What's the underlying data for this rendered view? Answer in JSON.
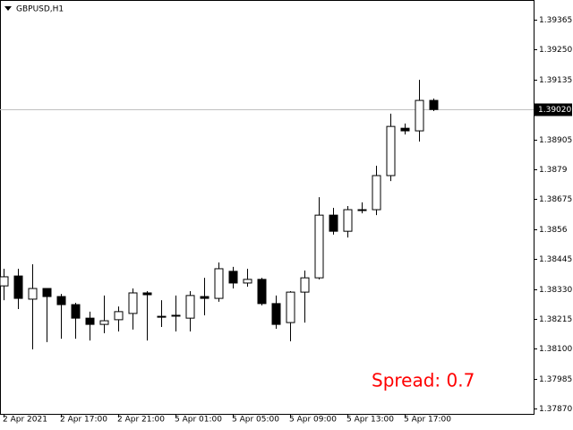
{
  "chart_data": {
    "type": "candlestick",
    "title": "GBPUSD,H1",
    "categories": [
      "2 Apr 2021",
      null,
      null,
      null,
      "2 Apr 17:00",
      null,
      null,
      null,
      "2 Apr 21:00",
      null,
      null,
      null,
      "5 Apr 01:00",
      null,
      null,
      null,
      "5 Apr 05:00",
      null,
      null,
      null,
      "5 Apr 09:00",
      null,
      null,
      null,
      "5 Apr 13:00",
      null,
      null,
      null,
      "5 Apr 17:00",
      null,
      null
    ],
    "open": [
      1.38342,
      1.3838,
      1.38291,
      1.38332,
      1.38301,
      1.3827,
      1.38218,
      1.38194,
      1.38212,
      1.38236,
      1.38315,
      1.38225,
      1.38229,
      1.38218,
      1.38301,
      1.38294,
      1.38398,
      1.38353,
      1.38367,
      1.38274,
      1.38201,
      1.38318,
      1.38373,
      1.38614,
      1.38552,
      1.38635,
      1.38635,
      1.38766,
      1.38948,
      1.38938,
      1.39055
    ],
    "high": [
      1.38408,
      1.38408,
      1.38425,
      1.38332,
      1.38311,
      1.38277,
      1.38243,
      1.38305,
      1.38263,
      1.38332,
      1.38322,
      1.38287,
      1.38305,
      1.38322,
      1.38373,
      1.38432,
      1.38415,
      1.38408,
      1.38373,
      1.38305,
      1.38322,
      1.38401,
      1.38683,
      1.38642,
      1.38649,
      1.38663,
      1.38804,
      1.39004,
      1.38966,
      1.39134,
      1.39062
    ],
    "low": [
      1.38287,
      1.38253,
      1.38098,
      1.38126,
      1.38139,
      1.38139,
      1.38132,
      1.3816,
      1.38167,
      1.38174,
      1.38132,
      1.38184,
      1.38167,
      1.38167,
      1.38229,
      1.38281,
      1.38332,
      1.38339,
      1.38267,
      1.38177,
      1.38129,
      1.38201,
      1.38367,
      1.38539,
      1.38528,
      1.38621,
      1.38614,
      1.38745,
      1.38924,
      1.38897,
      1.39014
    ],
    "close": [
      1.38377,
      1.38294,
      1.38332,
      1.38301,
      1.3827,
      1.38218,
      1.38194,
      1.38208,
      1.38243,
      1.38315,
      1.38308,
      1.38225,
      1.38229,
      1.38305,
      1.38294,
      1.38408,
      1.38353,
      1.38367,
      1.38274,
      1.38194,
      1.38318,
      1.38373,
      1.38614,
      1.38552,
      1.38635,
      1.38635,
      1.38766,
      1.38955,
      1.38938,
      1.39055,
      1.3902
    ],
    "up_color": "#ffffff",
    "down_color": "#000000",
    "ylim": [
      1.3785,
      1.39441
    ],
    "yticks": [
      1.39365,
      {
        "value": 1.3925,
        "label": "1.39250"
      },
      1.39135,
      {
        "value": 1.3902,
        "label": "1.39020"
      },
      1.38905,
      1.3879,
      1.38675,
      1.3856,
      1.38445,
      {
        "value": 1.3833,
        "label": "1.38330"
      },
      1.38215,
      {
        "value": 1.381,
        "label": "1.38100"
      },
      1.37985,
      {
        "value": 1.3787,
        "label": "1.37870"
      }
    ],
    "current_price": {
      "value": 1.3902,
      "label": "1.39020"
    },
    "annotation": "Spread: 0.7"
  }
}
